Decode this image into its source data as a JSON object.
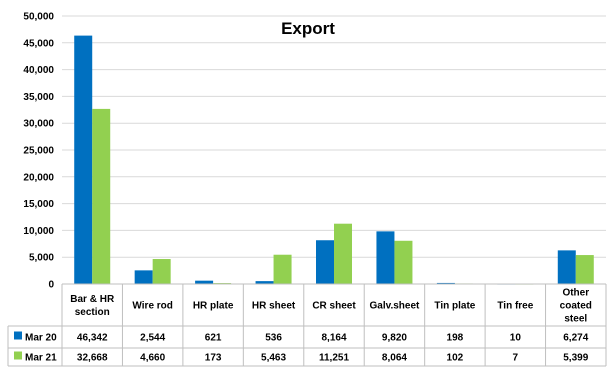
{
  "chart_data": {
    "type": "bar",
    "title": "Export",
    "categories": [
      [
        "Bar & HR",
        "section"
      ],
      [
        "Wire rod"
      ],
      [
        "HR plate"
      ],
      [
        "HR sheet"
      ],
      [
        "CR sheet"
      ],
      [
        "Galv.sheet"
      ],
      [
        "Tin plate"
      ],
      [
        "Tin free"
      ],
      [
        "Other",
        "coated",
        "steel"
      ]
    ],
    "series": [
      {
        "name": "Mar 20",
        "color": "#0070c0",
        "values": [
          46342,
          2544,
          621,
          536,
          8164,
          9820,
          198,
          10,
          6274
        ],
        "labels": [
          "46,342",
          "2,544",
          "621",
          "536",
          "8,164",
          "9,820",
          "198",
          "10",
          "6,274"
        ]
      },
      {
        "name": "Mar 21",
        "color": "#92d050",
        "values": [
          32668,
          4660,
          173,
          5463,
          11251,
          8064,
          102,
          7,
          5399
        ],
        "labels": [
          "32,668",
          "4,660",
          "173",
          "5,463",
          "11,251",
          "8,064",
          "102",
          "7",
          "5,399"
        ]
      }
    ],
    "ylim": [
      0,
      50000
    ],
    "yticks": [
      "0",
      "5,000",
      "10,000",
      "15,000",
      "20,000",
      "25,000",
      "30,000",
      "35,000",
      "40,000",
      "45,000",
      "50,000"
    ],
    "data_table": true,
    "legend": "data-table"
  }
}
